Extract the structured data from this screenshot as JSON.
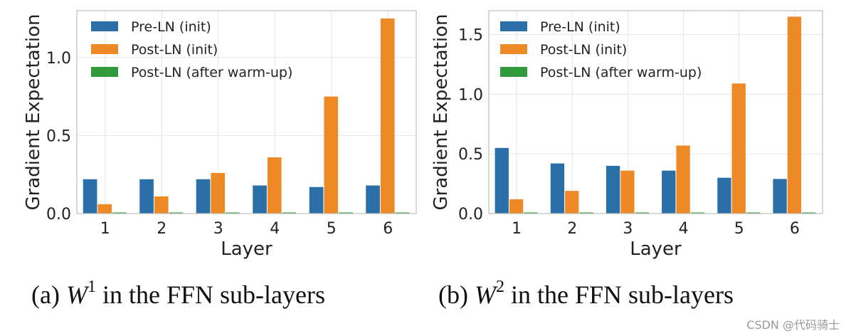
{
  "chart_data": [
    {
      "type": "bar",
      "categories": [
        "1",
        "2",
        "3",
        "4",
        "5",
        "6"
      ],
      "xlabel": "Layer",
      "ylabel": "Gradient Expectation",
      "ylim": [
        0,
        1.3
      ],
      "yticks": [
        0.0,
        0.5,
        1.0
      ],
      "ytick_labels": [
        "0.0",
        "0.5",
        "1.0"
      ],
      "grid": true,
      "legend_position": "top-left",
      "series": [
        {
          "name": "Pre-LN (init)",
          "values": [
            0.22,
            0.22,
            0.22,
            0.18,
            0.17,
            0.18
          ],
          "color": "#2b6fa8"
        },
        {
          "name": "Post-LN (init)",
          "values": [
            0.06,
            0.11,
            0.26,
            0.36,
            0.75,
            1.25
          ],
          "color": "#ee8a25"
        },
        {
          "name": "Post-LN (after warm-up)",
          "values": [
            0.003,
            0.003,
            0.003,
            0.004,
            0.003,
            0.005
          ],
          "color": "#2f9a3c"
        }
      ],
      "caption": {
        "prefix": "(a) ",
        "symbol": "W",
        "superscript": "1",
        "suffix": " in the FFN sub-layers"
      }
    },
    {
      "type": "bar",
      "categories": [
        "1",
        "2",
        "3",
        "4",
        "5",
        "6"
      ],
      "xlabel": "Layer",
      "ylabel": "Gradient Expectation",
      "ylim": [
        0,
        1.7
      ],
      "yticks": [
        0.0,
        0.5,
        1.0,
        1.5
      ],
      "ytick_labels": [
        "0.0",
        "0.5",
        "1.0",
        "1.5"
      ],
      "grid": true,
      "legend_position": "top-left",
      "series": [
        {
          "name": "Pre-LN (init)",
          "values": [
            0.55,
            0.42,
            0.4,
            0.36,
            0.3,
            0.29
          ],
          "color": "#2b6fa8"
        },
        {
          "name": "Post-LN (init)",
          "values": [
            0.12,
            0.19,
            0.36,
            0.57,
            1.09,
            1.65
          ],
          "color": "#ee8a25"
        },
        {
          "name": "Post-LN (after warm-up)",
          "values": [
            0.005,
            0.005,
            0.005,
            0.006,
            0.005,
            0.006
          ],
          "color": "#2f9a3c"
        }
      ],
      "caption": {
        "prefix": "(b) ",
        "symbol": "W",
        "superscript": "2",
        "suffix": " in the FFN sub-layers"
      }
    }
  ],
  "watermark": "CSDN @代码骑士"
}
